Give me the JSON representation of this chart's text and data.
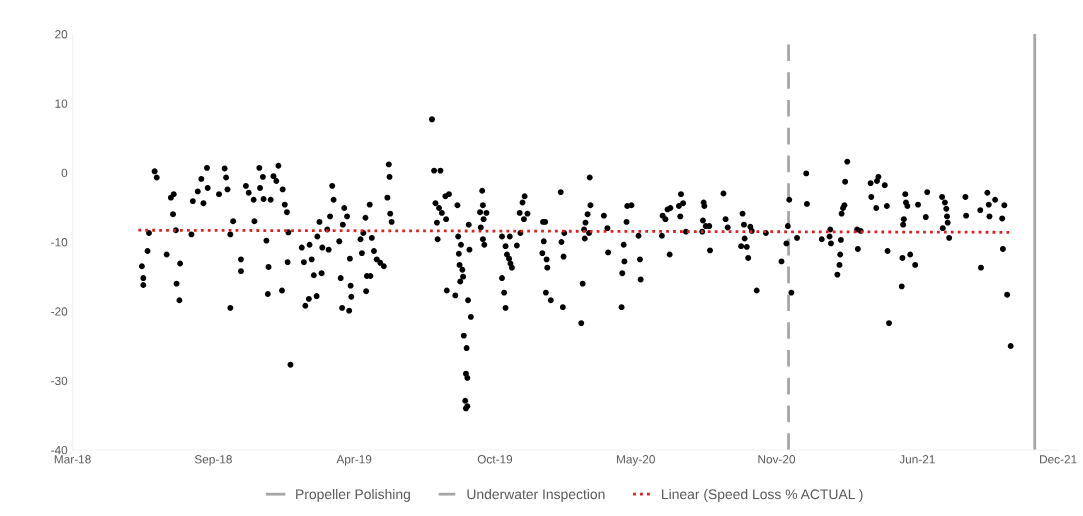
{
  "chart_data": {
    "type": "scatter",
    "xlim": [
      "2018-03-01",
      "2021-12-23"
    ],
    "xticks": [
      {
        "value": "2018-03-01",
        "label": "Mar-18"
      },
      {
        "value": "2018-09-16",
        "label": "Sep-18"
      },
      {
        "value": "2019-04-03",
        "label": "Apr-19"
      },
      {
        "value": "2019-10-19",
        "label": "Oct-19"
      },
      {
        "value": "2020-05-05",
        "label": "May-20"
      },
      {
        "value": "2020-11-20",
        "label": "Nov-20"
      },
      {
        "value": "2021-06-07",
        "label": "Jun-21"
      },
      {
        "value": "2021-12-23",
        "label": "Dec-21"
      }
    ],
    "ylim": [
      -40,
      20
    ],
    "yticks": [
      -40,
      -30,
      -20,
      -10,
      0,
      10,
      20
    ],
    "grid": false,
    "legend": "bottom",
    "ref_lines": [
      {
        "axis": "x",
        "value": "2021-11-20",
        "label": "Propeller Polishing",
        "color": "#a6a6a6",
        "line_style": "solid"
      },
      {
        "axis": "x",
        "value": "2020-12-07",
        "label": "Underwater Inspection",
        "color": "#a6a6a6",
        "line_style": "dashed"
      }
    ],
    "series": [
      {
        "color": "#000000",
        "marker": "circle",
        "x": [
          "2018-06-07",
          "2018-06-09",
          "2018-06-09",
          "2018-06-15",
          "2018-06-17",
          "2018-06-25",
          "2018-06-28",
          "2018-07-12",
          "2018-07-18",
          "2018-07-21",
          "2018-07-22",
          "2018-07-25",
          "2018-07-26",
          "2018-07-31",
          "2018-07-30",
          "2018-08-16",
          "2018-08-18",
          "2018-08-25",
          "2018-08-30",
          "2018-09-02",
          "2018-09-07",
          "2018-09-08",
          "2018-09-24",
          "2018-10-02",
          "2018-10-04",
          "2018-10-06",
          "2018-10-10",
          "2018-10-10",
          "2018-10-14",
          "2018-10-25",
          "2018-10-25",
          "2018-11-01",
          "2018-11-05",
          "2018-11-12",
          "2018-11-13",
          "2018-11-20",
          "2018-11-21",
          "2018-11-25",
          "2018-11-26",
          "2018-11-30",
          "2018-12-03",
          "2018-12-02",
          "2018-12-06",
          "2018-12-10",
          "2018-12-14",
          "2018-12-17",
          "2018-12-23",
          "2018-12-22",
          "2018-12-26",
          "2018-12-29",
          "2018-12-31",
          "2018-12-30",
          "2019-01-03",
          "2019-01-19",
          "2019-01-24",
          "2019-01-22",
          "2019-01-29",
          "2019-01-30",
          "2019-02-02",
          "2019-02-05",
          "2019-02-09",
          "2019-02-10",
          "2019-02-13",
          "2019-02-16",
          "2019-02-17",
          "2019-02-24",
          "2019-02-26",
          "2019-02-28",
          "2019-03-03",
          "2019-03-05",
          "2019-03-13",
          "2019-03-15",
          "2019-03-17",
          "2019-03-18",
          "2019-03-20",
          "2019-03-24",
          "2019-03-27",
          "2019-03-29",
          "2019-03-28",
          "2019-03-30",
          "2019-04-12",
          "2019-04-14",
          "2019-04-16",
          "2019-04-19",
          "2019-04-20",
          "2019-04-21",
          "2019-04-25",
          "2019-04-28",
          "2019-05-05",
          "2019-05-01",
          "2019-05-10",
          "2019-05-15",
          "2019-04-26",
          "2019-05-22",
          "2019-05-23",
          "2019-05-20",
          "2019-05-24",
          "2019-05-26",
          "2019-07-22",
          "2019-07-25",
          "2019-08-03",
          "2019-07-27",
          "2019-08-01",
          "2019-08-05",
          "2019-07-29",
          "2019-07-30",
          "2019-08-10",
          "2019-08-15",
          "2019-08-11",
          "2019-08-27",
          "2019-08-28",
          "2019-08-29",
          "2019-08-30",
          "2019-09-03",
          "2019-08-31",
          "2019-09-04",
          "2019-09-01",
          "2019-09-12",
          "2019-09-13",
          "2019-09-11",
          "2019-09-15",
          "2019-09-05",
          "2019-09-09",
          "2019-09-08",
          "2019-09-10",
          "2019-09-07",
          "2019-09-08",
          "2019-09-10",
          "2019-08-12",
          "2019-08-24",
          "2019-10-01",
          "2019-10-02",
          "2019-09-28",
          "2019-10-07",
          "2019-10-03",
          "2019-09-29",
          "2019-10-02",
          "2019-10-04",
          "2019-10-29",
          "2019-10-29",
          "2019-11-01",
          "2019-11-03",
          "2019-11-03",
          "2019-11-05",
          "2019-11-08",
          "2019-11-10",
          "2019-11-12",
          "2019-11-09",
          "2019-11-19",
          "2019-11-24",
          "2019-11-23",
          "2019-11-27",
          "2019-11-30",
          "2019-11-29",
          "2019-12-04",
          "2019-12-26",
          "2019-12-29",
          "2019-12-25",
          "2019-12-27",
          "2019-12-31",
          "2020-01-01",
          "2019-12-30",
          "2020-01-06",
          "2020-01-20",
          "2020-01-21",
          "2020-01-25",
          "2020-01-24",
          "2020-01-23",
          "2020-02-18",
          "2020-02-20",
          "2020-02-22",
          "2020-02-24",
          "2020-02-27",
          "2020-02-29",
          "2020-03-01",
          "2020-03-02",
          "2020-02-23",
          "2020-03-21",
          "2020-03-26",
          "2020-03-27",
          "2020-04-15",
          "2020-04-16",
          "2020-04-18",
          "2020-04-19",
          "2020-04-23",
          "2020-04-22",
          "2020-04-29",
          "2020-05-09",
          "2020-05-11",
          "2020-05-12",
          "2020-06-11",
          "2020-06-12",
          "2020-06-16",
          "2020-06-19",
          "2020-06-23",
          "2020-06-22",
          "2020-07-05",
          "2020-07-08",
          "2020-07-11",
          "2020-07-07",
          "2020-07-15",
          "2020-08-09",
          "2020-08-10",
          "2020-08-08",
          "2020-08-12",
          "2020-08-17",
          "2020-08-07",
          "2020-08-18",
          "2020-09-06",
          "2020-09-09",
          "2020-09-12",
          "2020-10-03",
          "2020-10-05",
          "2020-10-06",
          "2020-10-01",
          "2020-10-09",
          "2020-10-11",
          "2020-10-14",
          "2020-10-16",
          "2020-10-23",
          "2020-11-05",
          "2020-11-27",
          "2020-12-04",
          "2020-12-06",
          "2020-12-08",
          "2020-12-11",
          "2020-12-19",
          "2021-01-01",
          "2021-01-02",
          "2021-01-23",
          "2021-02-04",
          "2021-02-03",
          "2021-02-05",
          "2021-02-14",
          "2021-02-17",
          "2021-02-18",
          "2021-02-19",
          "2021-02-20",
          "2021-02-22",
          "2021-02-24",
          "2021-02-25",
          "2021-02-28",
          "2021-03-14",
          "2021-03-19",
          "2021-03-15",
          "2021-04-02",
          "2021-04-03",
          "2021-04-11",
          "2021-04-13",
          "2021-04-10",
          "2021-04-22",
          "2021-04-25",
          "2021-04-26",
          "2021-04-28",
          "2021-05-16",
          "2021-05-17",
          "2021-05-18",
          "2021-05-19",
          "2021-05-21",
          "2021-05-22",
          "2021-05-24",
          "2021-05-28",
          "2021-06-04",
          "2021-06-08",
          "2021-06-19",
          "2021-06-21",
          "2021-07-12",
          "2021-07-13",
          "2021-07-16",
          "2021-07-18",
          "2021-07-19",
          "2021-07-20",
          "2021-07-22",
          "2021-08-14",
          "2021-08-15",
          "2021-09-04",
          "2021-09-05",
          "2021-09-14",
          "2021-09-16",
          "2021-09-17",
          "2021-09-25",
          "2021-10-05",
          "2021-10-08",
          "2021-10-06",
          "2021-10-12",
          "2021-10-17"
        ],
        "values": [
          -13.5,
          -15.2,
          -16.2,
          -11.3,
          -8.7,
          0.2,
          -0.7,
          -11.8,
          -3.6,
          -6.0,
          -3.1,
          -8.3,
          -16.0,
          -13.1,
          -18.4,
          -8.9,
          -4.1,
          -2.7,
          -0.9,
          -4.4,
          0.7,
          -2.2,
          -3.1,
          0.6,
          -0.7,
          -2.4,
          -19.5,
          -8.9,
          -7.0,
          -12.5,
          -14.2,
          -1.9,
          -2.9,
          -3.9,
          -7.0,
          0.7,
          -2.2,
          -0.6,
          -3.8,
          -9.8,
          -13.6,
          -17.5,
          -3.9,
          -0.5,
          -1.2,
          1.0,
          -2.4,
          -17.0,
          -4.6,
          -5.7,
          -8.6,
          -12.9,
          -27.7,
          -10.8,
          -19.2,
          -12.9,
          -18.2,
          -10.4,
          -12.5,
          -14.8,
          -17.8,
          -9.2,
          -7.1,
          -14.5,
          -10.8,
          -8.2,
          -11.1,
          -6.3,
          -1.9,
          -3.9,
          -9.9,
          -15.2,
          -19.5,
          -7.5,
          -5.1,
          -6.3,
          -19.9,
          -16.3,
          -12.4,
          -17.9,
          -9.6,
          -11.6,
          -8.7,
          -6.5,
          -17.1,
          -14.9,
          -4.6,
          -9.4,
          -12.5,
          -11.3,
          -13.0,
          -13.5,
          -14.9,
          1.2,
          -0.6,
          -3.6,
          -5.9,
          -7.1,
          7.7,
          0.3,
          0.3,
          -4.4,
          -5.1,
          -5.8,
          -7.2,
          -9.6,
          -3.4,
          -3.1,
          -6.7,
          -4.7,
          -9.2,
          -11.7,
          -13.3,
          -14.0,
          -15.7,
          -15.0,
          -10.4,
          -7.5,
          -11.1,
          -18.4,
          -20.8,
          -23.5,
          -25.3,
          -29.0,
          -29.6,
          -32.9,
          -34.0,
          -33.7,
          -17.0,
          -17.7,
          -2.6,
          -4.7,
          -5.7,
          -5.8,
          -6.7,
          -7.9,
          -9.6,
          -10.4,
          -9.2,
          -15.2,
          -17.3,
          -19.5,
          -10.6,
          -11.8,
          -12.4,
          -13.1,
          -13.7,
          -9.2,
          -10.5,
          -8.7,
          -5.8,
          -4.3,
          -3.4,
          -6.7,
          -5.9,
          -7.1,
          -7.1,
          -11.6,
          -9.9,
          -12.5,
          -13.7,
          -17.3,
          -18.4,
          -2.8,
          -10.0,
          -8.7,
          -12.1,
          -19.4,
          -21.7,
          -16.0,
          -8.2,
          -7.2,
          -6.0,
          -8.7,
          -0.7,
          -4.7,
          -9.5,
          -6.2,
          -8.0,
          -11.5,
          -19.4,
          -14.5,
          -10.4,
          -12.8,
          -4.8,
          -7.1,
          -4.7,
          -9.1,
          -12.5,
          -15.4,
          -9.1,
          -6.2,
          -6.7,
          -5.3,
          -5.1,
          -11.8,
          -4.8,
          -3.1,
          -4.4,
          -6.3,
          -8.5,
          -4.3,
          -4.8,
          -6.9,
          -7.7,
          -7.7,
          -8.5,
          -11.2,
          -3.0,
          -6.7,
          -7.9,
          -5.9,
          -7.5,
          -9.5,
          -10.6,
          -10.7,
          -12.3,
          -7.8,
          -8.4,
          -17.0,
          -8.7,
          -12.8,
          -10.2,
          -7.7,
          -3.9,
          -17.3,
          -9.4,
          -0.1,
          -4.5,
          -9.6,
          -8.2,
          -9.2,
          -10.2,
          -14.7,
          -13.3,
          -11.8,
          -9.7,
          -5.9,
          -5.1,
          -4.7,
          -1.3,
          1.6,
          -8.2,
          -8.4,
          -11.0,
          -1.5,
          -3.5,
          -1.2,
          -0.6,
          -5.1,
          -1.8,
          -4.8,
          -11.3,
          -21.7,
          -16.4,
          -12.3,
          -7.5,
          -6.7,
          -3.1,
          -4.3,
          -4.8,
          -11.8,
          -13.3,
          -4.6,
          -6.4,
          -2.8,
          -3.5,
          -8.0,
          -4.3,
          -5.2,
          -6.3,
          -7.2,
          -9.4,
          -3.5,
          -6.2,
          -5.4,
          -13.7,
          -2.9,
          -4.6,
          -6.3,
          -3.9,
          -6.6,
          -4.7,
          -11.0,
          -17.6,
          -25.0
        ]
      },
      {
        "type": "line",
        "name": "Linear (Speed Loss % ACTUAL )",
        "color": "#e02020",
        "line_style": "dotted",
        "x": [
          "2018-06-02",
          "2021-10-18"
        ],
        "values": [
          -8.3,
          -8.6
        ]
      }
    ]
  }
}
